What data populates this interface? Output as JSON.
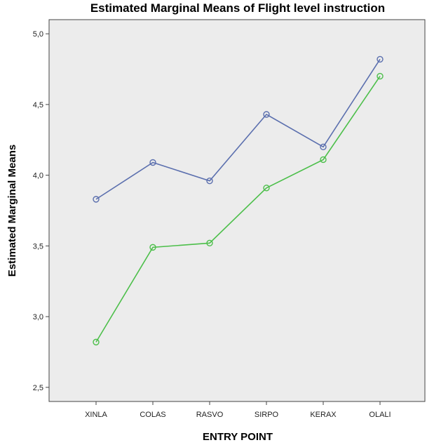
{
  "chart_data": {
    "type": "line",
    "title": "Estimated Marginal Means of Flight level instruction",
    "xlabel": "ENTRY POINT",
    "ylabel": "Estimated Marginal Means",
    "categories": [
      "XINLA",
      "COLAS",
      "RASVO",
      "SIRPO",
      "KERAX",
      "OLALI"
    ],
    "ylim": [
      2.4,
      5.1
    ],
    "yticks": [
      "2,5",
      "3,0",
      "3,5",
      "4,0",
      "4,5",
      "5,0"
    ],
    "ytick_values": [
      2.5,
      3.0,
      3.5,
      4.0,
      4.5,
      5.0
    ],
    "grid": false,
    "markers": "open-circle",
    "plot_background": "#ececec",
    "series": [
      {
        "color": "#5b6fae",
        "values": [
          3.83,
          4.09,
          3.96,
          4.43,
          4.2,
          4.82
        ]
      },
      {
        "color": "#4cbf4a",
        "values": [
          2.82,
          3.49,
          3.52,
          3.91,
          4.11,
          4.7
        ]
      }
    ]
  }
}
